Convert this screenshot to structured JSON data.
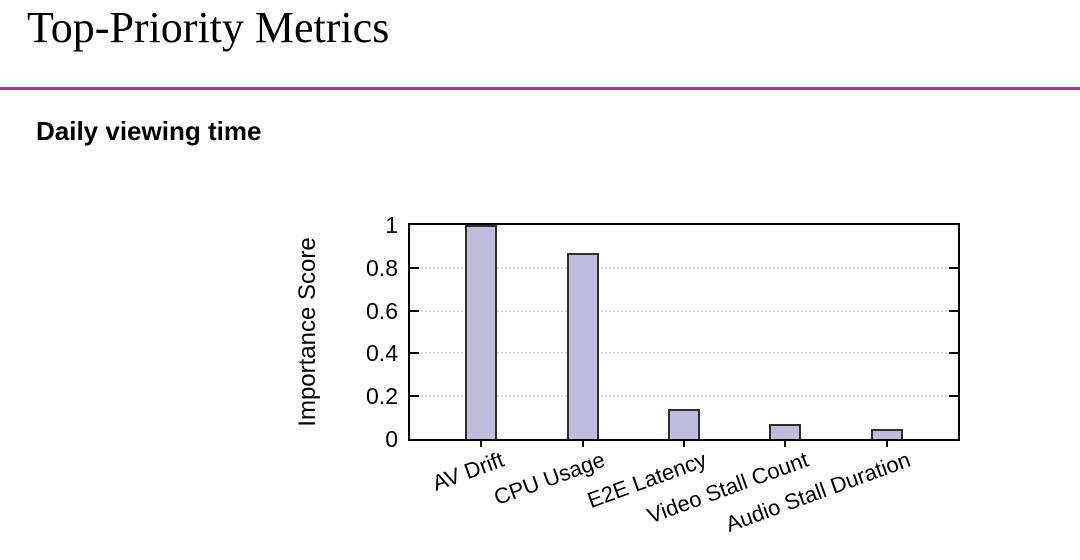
{
  "page": {
    "title": "Top-Priority Metrics",
    "subtitle": "Daily viewing time",
    "accent_color": "#9c3e97"
  },
  "chart_data": {
    "type": "bar",
    "title": "",
    "categories": [
      "AV Drift",
      "CPU Usage",
      "E2E Latency",
      "Video Stall Count",
      "Audio Stall Duration"
    ],
    "values": [
      1.0,
      0.87,
      0.14,
      0.07,
      0.045
    ],
    "xlabel": "",
    "ylabel": "Importance Score",
    "ylim": [
      0,
      1
    ],
    "ytick_values": [
      0,
      0.2,
      0.4,
      0.6,
      0.8,
      1
    ],
    "ytick_labels": [
      "0",
      "0.2",
      "0.4",
      "0.6",
      "0.8",
      "1"
    ],
    "grid": true,
    "legend_position": "none",
    "colors": {
      "bar_fill": "#c0bcdd",
      "bar_border": "#2f2f2f",
      "grid": "#dcdcdc",
      "axis": "#000000"
    }
  }
}
